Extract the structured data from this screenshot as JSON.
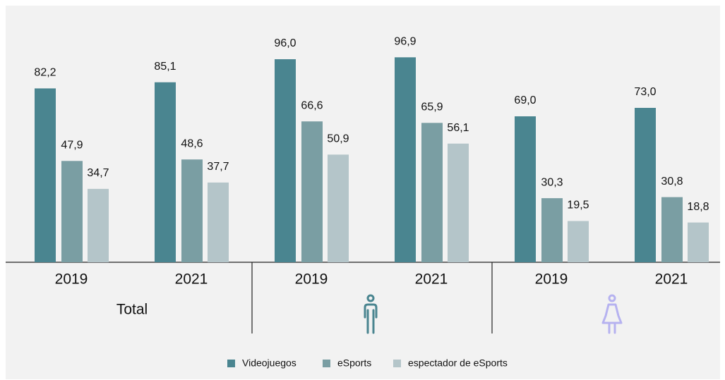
{
  "chart_data": {
    "type": "bar",
    "categories": [
      "2019",
      "2021",
      "2019",
      "2021",
      "2019",
      "2021"
    ],
    "groups": [
      "Total"
    ],
    "series": [
      {
        "name": "Videojuegos",
        "color": "#4a8590",
        "values": [
          82.2,
          85.1,
          96.0,
          96.9,
          69.0,
          73.0
        ],
        "value_labels": [
          "82,2",
          "85,1",
          "96,0",
          "96,9",
          "69,0",
          "73,0"
        ]
      },
      {
        "name": "eSports",
        "color": "#7a9ea3",
        "values": [
          47.9,
          48.6,
          66.6,
          65.9,
          30.3,
          30.8
        ],
        "value_labels": [
          "47,9",
          "48,6",
          "66,6",
          "65,9",
          "30,3",
          "30,8"
        ]
      },
      {
        "name": "espectador de eSports",
        "color": "#b4c5c9",
        "values": [
          34.7,
          37.7,
          50.9,
          56.1,
          19.5,
          18.8
        ],
        "value_labels": [
          "34,7",
          "37,7",
          "50,9",
          "56,1",
          "19,5",
          "18,8"
        ]
      }
    ]
  }
}
